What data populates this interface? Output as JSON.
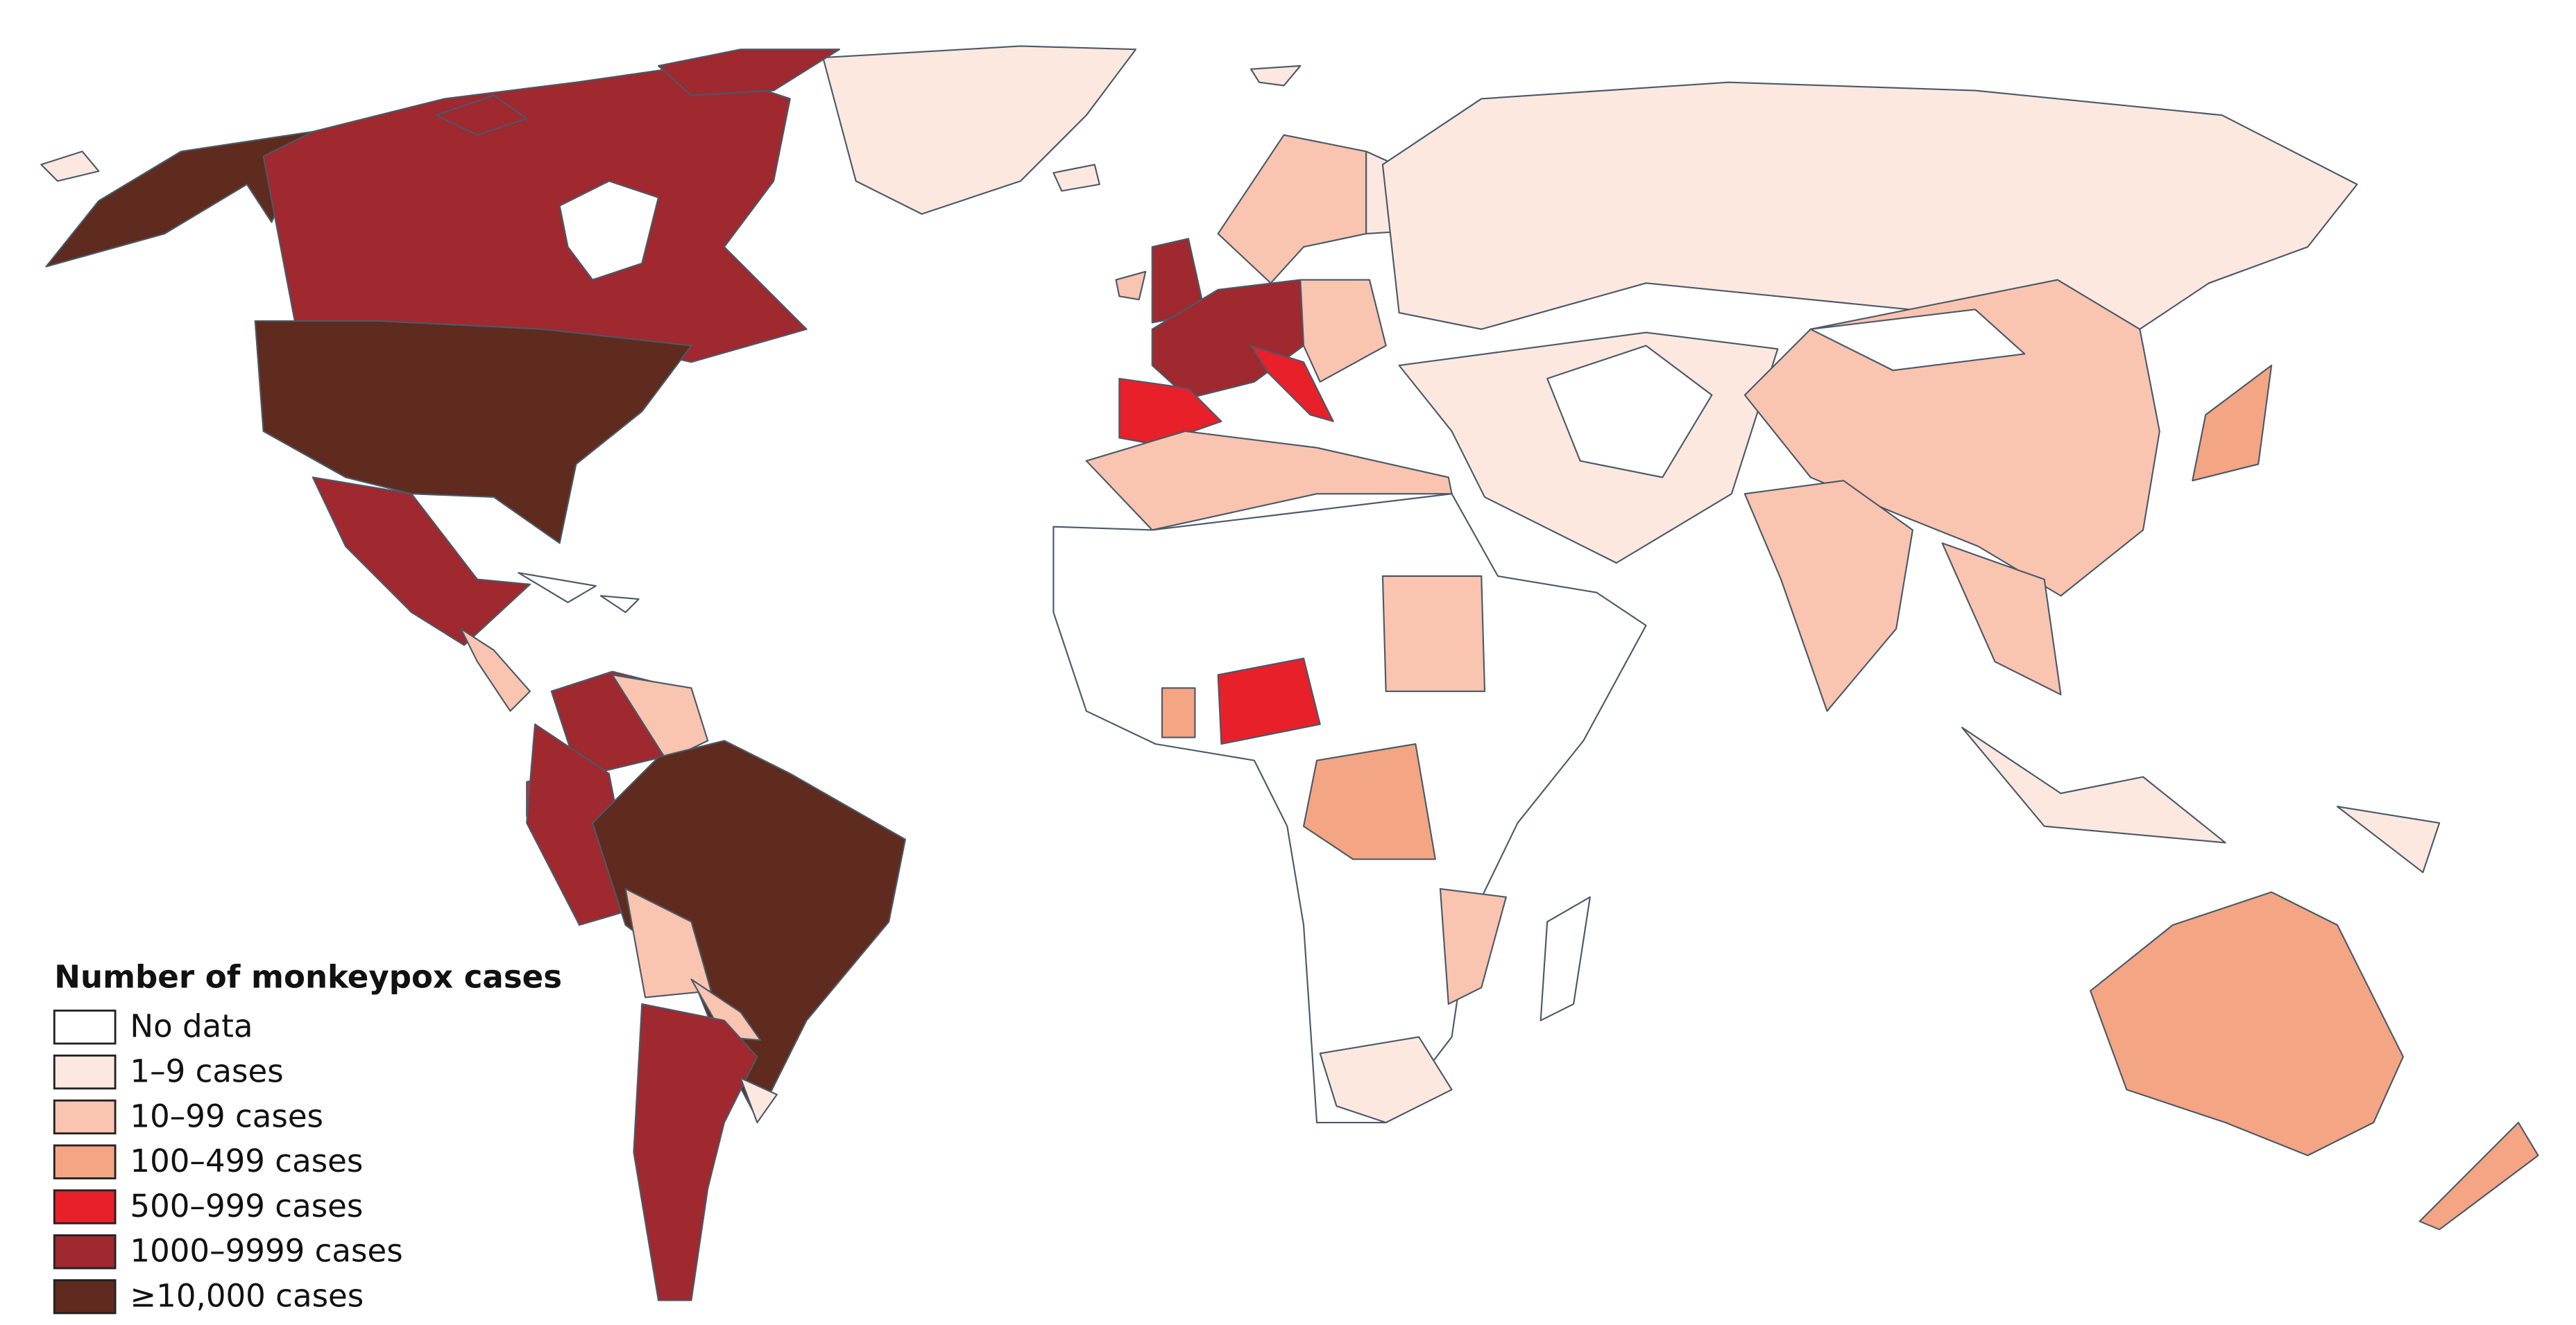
{
  "legend": {
    "title": "Number of monkeypox cases",
    "items": [
      {
        "label": "No data",
        "color": "#ffffff"
      },
      {
        "label": "1–9 cases",
        "color": "#fde8e0"
      },
      {
        "label": "10–99 cases",
        "color": "#f9c4b0"
      },
      {
        "label": "100–499 cases",
        "color": "#f4a583"
      },
      {
        "label": "500–999 cases",
        "color": "#e8202a"
      },
      {
        "label": "1000–9999 cases",
        "color": "#a0282f"
      },
      {
        "label": "≥10,000 cases",
        "color": "#5e2b1e"
      }
    ]
  }
}
